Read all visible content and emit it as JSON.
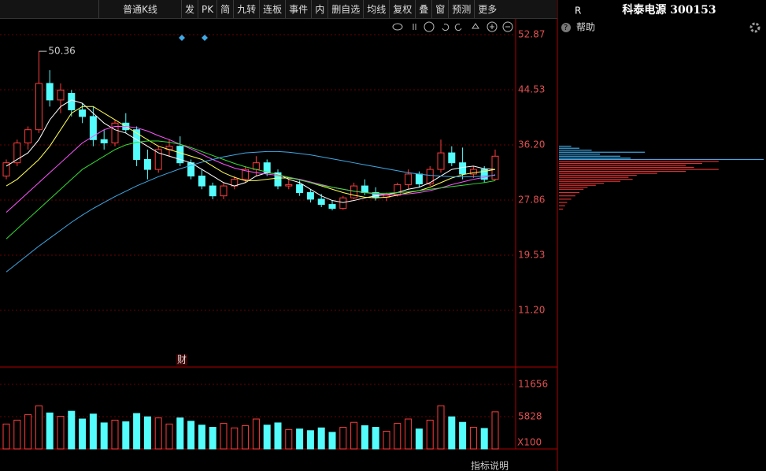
{
  "toolbar": {
    "buttons": [
      "普通K线",
      "发",
      "PK",
      "简",
      "九转",
      "连板",
      "事件",
      "内",
      "删自选",
      "均线",
      "复权",
      "叠",
      "窗",
      "预测",
      "更多"
    ]
  },
  "side_panel": {
    "flag": "R",
    "title": "科泰电源 300153",
    "help": "帮助"
  },
  "chart_data": [
    {
      "type": "candlestick",
      "ohlc": {
        "open": [
          31.5,
          33.5,
          36.5,
          38.5,
          45.5,
          43,
          44,
          41.5,
          40.5,
          37,
          36.5,
          39.5,
          38.5,
          34,
          32.5,
          35.5,
          36,
          33.5,
          31.5,
          30,
          28.5,
          30,
          31,
          32.5,
          33.5,
          32,
          30,
          30.2,
          29,
          28,
          27.2,
          26.6,
          28.2,
          30,
          29,
          28.3,
          28.6,
          30.2,
          31.8,
          30.3,
          32.5,
          35,
          33.5,
          31.8,
          32.5,
          31
        ],
        "high": [
          34,
          37,
          39,
          50.36,
          47.5,
          45.5,
          44.5,
          42.5,
          42,
          38.5,
          40,
          41,
          39,
          35.5,
          36,
          37,
          37.5,
          34,
          32.5,
          30.5,
          30.5,
          31.5,
          33,
          34.5,
          34,
          32.5,
          31,
          30.8,
          29.5,
          28.8,
          27.8,
          28.5,
          30.5,
          31,
          29.8,
          29,
          30.5,
          32.5,
          32.2,
          33,
          37,
          36,
          35.8,
          33,
          33,
          35.5
        ],
        "low": [
          31,
          33,
          35.5,
          38,
          42,
          41,
          40.5,
          39.5,
          36,
          35.5,
          36,
          38,
          33,
          31,
          32,
          34.5,
          33,
          31,
          29.5,
          28,
          28,
          29.5,
          30.5,
          31.5,
          31.5,
          29.5,
          29.5,
          28.5,
          27.5,
          26.8,
          26.3,
          26.4,
          28,
          28.6,
          27.8,
          27.7,
          28.4,
          29.5,
          29.8,
          30,
          32,
          33,
          31,
          31.2,
          30.5,
          30.8
        ],
        "close": [
          33.5,
          36.5,
          38.5,
          45.5,
          43,
          44.5,
          41.5,
          40.5,
          37,
          36.5,
          39.5,
          38.5,
          34,
          32.5,
          35.5,
          36,
          33.5,
          31.5,
          30,
          28.5,
          30,
          31,
          32.5,
          33.5,
          32,
          30,
          30.2,
          29,
          28,
          27.2,
          26.6,
          28.2,
          30,
          29,
          28.3,
          28.6,
          30.2,
          31.8,
          30.3,
          32.5,
          35,
          33.5,
          31.8,
          32.5,
          31,
          34.5
        ]
      },
      "up_color": "#ff3c3c",
      "down_color": "#54fcfc",
      "ylim": [
        2.74,
        54.54
      ],
      "yticks": [
        {
          "value": 11.2,
          "label": "11.20"
        },
        19.53,
        27.86,
        {
          "value": 36.2,
          "label": "36.20"
        },
        44.53,
        52.87
      ],
      "grid": true,
      "max_label": 50.36,
      "markers": [
        "财"
      ],
      "series": [
        {
          "color": "#ffffff",
          "values": [
            33,
            34,
            35,
            37,
            40,
            42,
            43,
            42.5,
            41,
            39.5,
            38.5,
            38,
            37,
            36,
            35,
            34.5,
            34,
            33.5,
            32.5,
            31.5,
            30.5,
            30,
            30.5,
            31.5,
            32,
            31.8,
            31,
            30.5,
            29.5,
            28.5,
            27.8,
            27.5,
            27.8,
            28.2,
            28.5,
            28.7,
            29,
            29.5,
            29.8,
            30.5,
            31.5,
            32.5,
            32.8,
            33,
            32.6,
            32.5
          ]
        },
        {
          "color": "#ffff55",
          "values": [
            30,
            31,
            32.5,
            34,
            36,
            38.5,
            41,
            42,
            42,
            41,
            40,
            39,
            38,
            37,
            36,
            35.5,
            35,
            34.5,
            34,
            33,
            32,
            31.3,
            30.8,
            30.8,
            31,
            31.2,
            31.2,
            31,
            30.5,
            30,
            29.5,
            29,
            28.6,
            28.3,
            28.2,
            28.3,
            28.6,
            29,
            29.3,
            29.8,
            30.5,
            31.2,
            31.7,
            32,
            32.2,
            32.5
          ]
        },
        {
          "color": "#ff55ff",
          "values": [
            26,
            27.5,
            29,
            30.5,
            32,
            33.5,
            35,
            36.5,
            37.5,
            38.5,
            39,
            39,
            38.8,
            38.3,
            37.6,
            37,
            36.3,
            35.6,
            34.8,
            34,
            33.3,
            32.7,
            32.3,
            32,
            31.8,
            31.6,
            31.3,
            31,
            30.6,
            30.2,
            29.8,
            29.5,
            29.2,
            29,
            28.8,
            28.7,
            28.7,
            28.8,
            29,
            29.3,
            29.7,
            30.2,
            30.6,
            31,
            31.3,
            31.7
          ]
        },
        {
          "color": "#33dd33",
          "values": [
            22,
            23.5,
            25,
            26.5,
            28,
            29.5,
            31,
            32.5,
            33.5,
            34.5,
            35.5,
            36.2,
            36.6,
            36.8,
            36.8,
            36.6,
            36.3,
            35.8,
            35.2,
            34.6,
            34,
            33.4,
            32.9,
            32.5,
            32.1,
            31.7,
            31.3,
            30.9,
            30.5,
            30.1,
            29.8,
            29.5,
            29.2,
            29,
            28.9,
            28.9,
            29,
            29.1,
            29.3,
            29.5,
            29.7,
            29.9,
            30.1,
            30.3,
            30.5,
            30.8
          ]
        },
        {
          "color": "#3fa9e6",
          "values": [
            17,
            18.3,
            19.6,
            20.9,
            22.1,
            23.3,
            24.5,
            25.6,
            26.6,
            27.5,
            28.4,
            29.2,
            30,
            30.7,
            31.4,
            32,
            32.6,
            33.1,
            33.6,
            34,
            34.4,
            34.7,
            35,
            35.1,
            35.2,
            35.2,
            35.1,
            34.9,
            34.7,
            34.4,
            34.1,
            33.8,
            33.5,
            33.2,
            32.9,
            32.6,
            32.3,
            32,
            31.8,
            31.6,
            31.5,
            31.4,
            31.4,
            31.4,
            31.5,
            31.6
          ]
        }
      ],
      "profile": {
        "xlim": [
          0,
          100
        ],
        "prices": [
          36.0,
          35.7,
          35.4,
          35.1,
          34.8,
          34.5,
          34.2,
          34.0,
          33.7,
          33.4,
          33.1,
          32.8,
          32.5,
          32.2,
          31.9,
          31.6,
          31.3,
          31.0,
          30.7,
          30.4,
          30.1,
          29.8,
          29.5,
          29.0,
          28.5,
          28.0,
          27.5,
          27.0,
          26.5
        ],
        "values": [
          6,
          10,
          16,
          42,
          20,
          30,
          35,
          100,
          78,
          70,
          62,
          66,
          78,
          62,
          48,
          38,
          34,
          36,
          30,
          22,
          18,
          14,
          12,
          10,
          8,
          6,
          4,
          3,
          2
        ]
      }
    },
    {
      "type": "bar",
      "values": [
        4500,
        5200,
        6200,
        7800,
        6500,
        5900,
        6800,
        5400,
        6300,
        4700,
        5200,
        4900,
        6400,
        5800,
        5600,
        4500,
        5600,
        5000,
        4300,
        3900,
        4600,
        3800,
        4200,
        5400,
        4300,
        4700,
        3500,
        3600,
        3300,
        3800,
        3000,
        3900,
        4800,
        4200,
        3900,
        3200,
        4600,
        5400,
        3600,
        5200,
        7800,
        5800,
        4800,
        3900,
        3700,
        6700
      ],
      "ylim": [
        0,
        14499
      ],
      "yticks": [
        5828,
        11656
      ],
      "grid": true,
      "unit_label": "X100"
    }
  ],
  "footer": {
    "label": "指标说明"
  }
}
